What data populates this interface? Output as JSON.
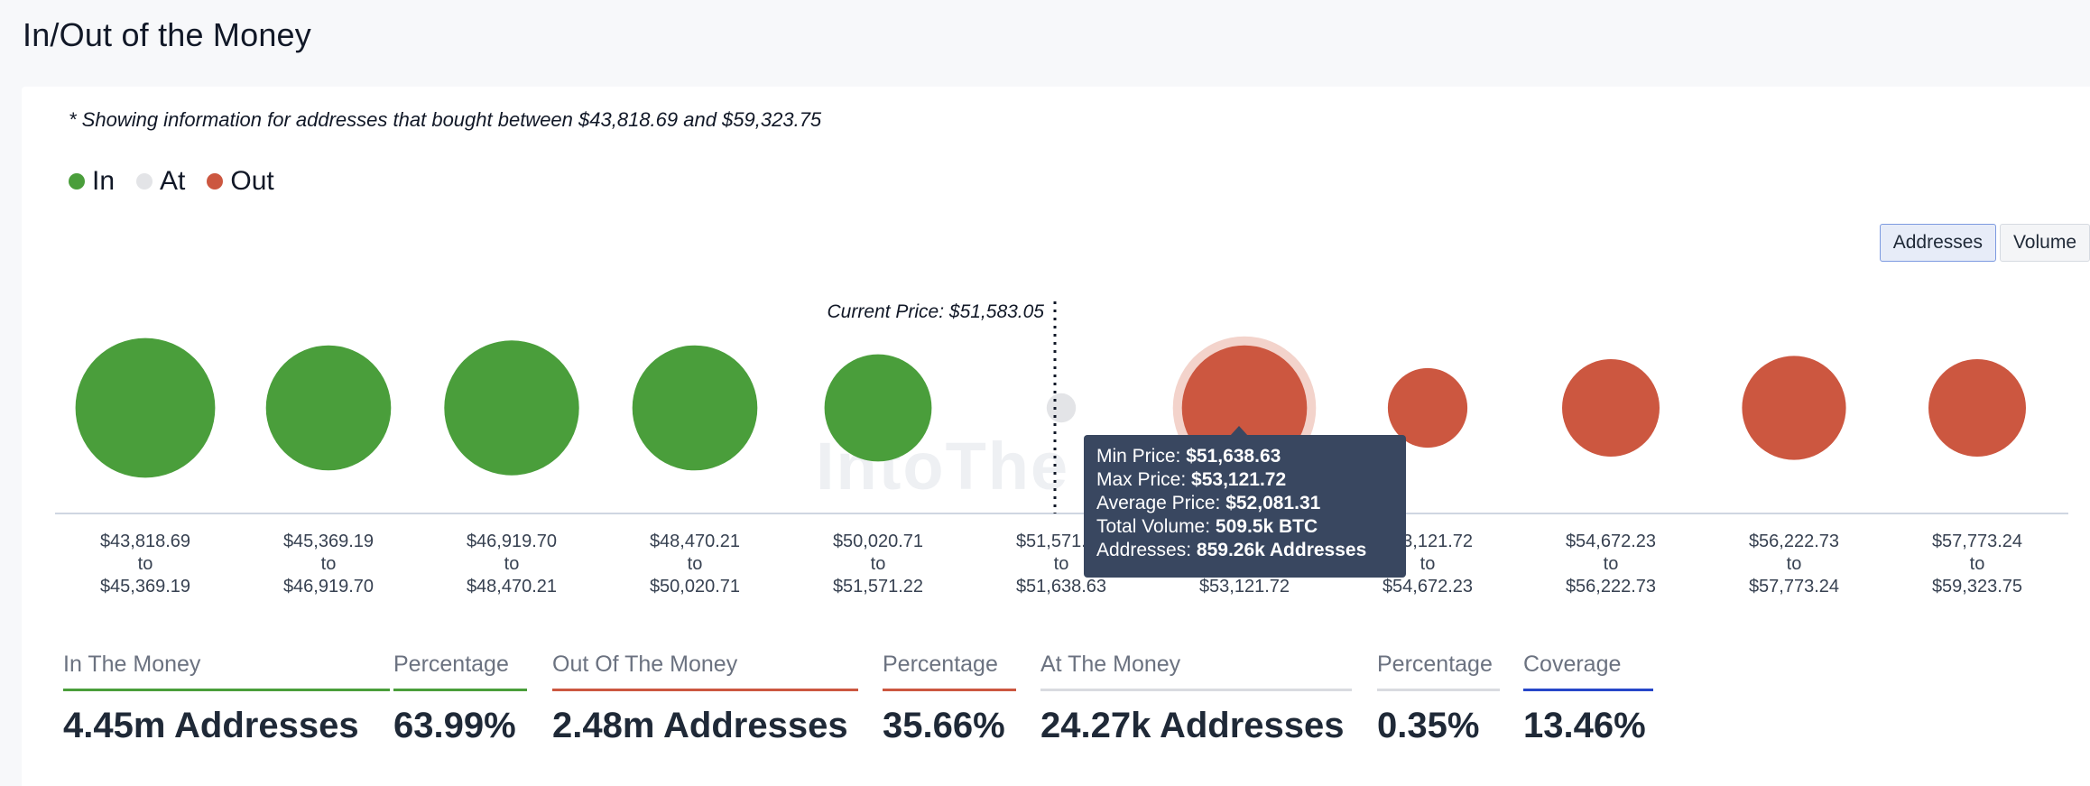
{
  "page": {
    "title": "In/Out of the Money"
  },
  "note": "* Showing information for addresses that bought between $43,818.69 and $59,323.75",
  "legend": [
    {
      "label": "In",
      "color": "#4a9e3b"
    },
    {
      "label": "At",
      "color": "#e3e4e7"
    },
    {
      "label": "Out",
      "color": "#cc5740"
    }
  ],
  "toggle": {
    "options": [
      "Addresses",
      "Volume"
    ],
    "selected": "Addresses"
  },
  "watermark": "IntoThe",
  "chart_data": {
    "type": "bubble",
    "current_price_label": "Current Price: $51,583.05",
    "current_price": 51583.05,
    "size_metric": "Addresses (relative bubble size)",
    "buckets": [
      {
        "from": "$43,818.69",
        "to": "$45,369.19",
        "status": "In",
        "relative_size": 0.86
      },
      {
        "from": "$45,369.19",
        "to": "$46,919.70",
        "status": "In",
        "relative_size": 0.77
      },
      {
        "from": "$46,919.70",
        "to": "$48,470.21",
        "status": "In",
        "relative_size": 0.83
      },
      {
        "from": "$48,470.21",
        "to": "$50,020.71",
        "status": "In",
        "relative_size": 0.77
      },
      {
        "from": "$50,020.71",
        "to": "$51,571.22",
        "status": "In",
        "relative_size": 0.66
      },
      {
        "from": "$51,571.22",
        "to": "$51,638.63",
        "status": "At",
        "relative_size": 0.18
      },
      {
        "from": "$51,638.63",
        "to": "$53,121.72",
        "status": "Out",
        "relative_size": 0.77,
        "highlighted": true
      },
      {
        "from": "$53,121.72",
        "to": "$54,672.23",
        "status": "Out",
        "relative_size": 0.49
      },
      {
        "from": "$54,672.23",
        "to": "$56,222.73",
        "status": "Out",
        "relative_size": 0.6
      },
      {
        "from": "$56,222.73",
        "to": "$57,773.24",
        "status": "Out",
        "relative_size": 0.64
      },
      {
        "from": "$57,773.24",
        "to": "$59,323.75",
        "status": "Out",
        "relative_size": 0.6
      }
    ],
    "tooltip": {
      "rows": [
        {
          "label": "Min Price:",
          "value": "$51,638.63"
        },
        {
          "label": "Max Price:",
          "value": "$53,121.72"
        },
        {
          "label": "Average Price:",
          "value": "$52,081.31"
        },
        {
          "label": "Total Volume:",
          "value": "509.5k BTC"
        },
        {
          "label": "Addresses:",
          "value": "859.26k Addresses"
        }
      ]
    }
  },
  "stats": [
    {
      "label": "In The Money",
      "value": "4.45m Addresses",
      "color": "#4a9e3b"
    },
    {
      "label": "Percentage",
      "value": "63.99%",
      "color": "#4a9e3b"
    },
    {
      "label": "Out Of The Money",
      "value": "2.48m Addresses",
      "color": "#cc5740"
    },
    {
      "label": "Percentage",
      "value": "35.66%",
      "color": "#cc5740"
    },
    {
      "label": "At The Money",
      "value": "24.27k Addresses",
      "color": "#d9dbe0"
    },
    {
      "label": "Percentage",
      "value": "0.35%",
      "color": "#d9dbe0"
    },
    {
      "label": "Coverage",
      "value": "13.46%",
      "color": "#2747c9"
    }
  ]
}
